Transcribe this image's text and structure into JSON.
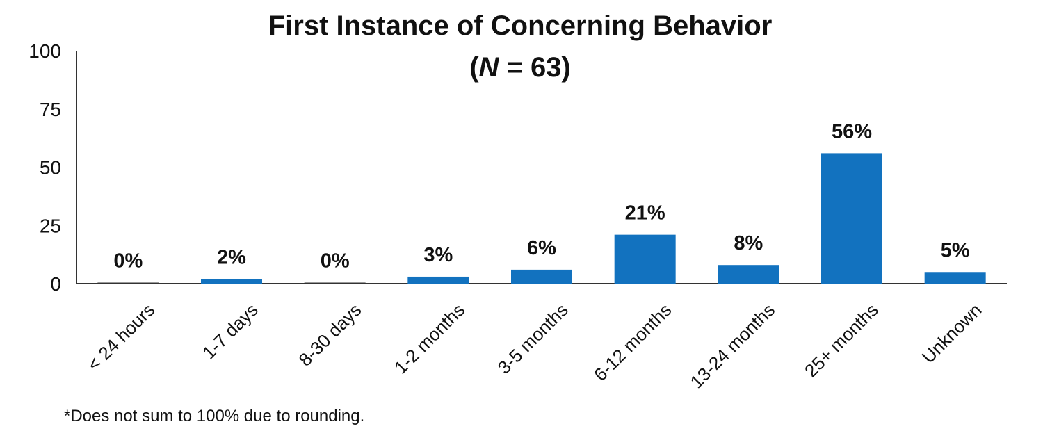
{
  "chart_data": {
    "type": "bar",
    "title": "First Instance of Concerning Behavior",
    "subtitle": {
      "open": "(",
      "italic": "N",
      "rest": " = 63)"
    },
    "categories": [
      "< 24 hours",
      "1-7 days",
      "8-30 days",
      "1-2 months",
      "3-5 months",
      "6-12 months",
      "13-24 months",
      "25+ months",
      "Unknown"
    ],
    "values": [
      0,
      2,
      0,
      3,
      6,
      21,
      8,
      56,
      5
    ],
    "data_labels": [
      "0%",
      "2%",
      "0%",
      "3%",
      "6%",
      "21%",
      "8%",
      "56%",
      "5%"
    ],
    "yticks": [
      "0",
      "25",
      "50",
      "75",
      "100"
    ],
    "ylim": [
      0,
      100
    ],
    "xlabel": "",
    "ylabel": "",
    "grid": false,
    "legend": "none",
    "bar_color": "#1272bf",
    "footnote": "*Does not sum to 100% due to rounding."
  }
}
